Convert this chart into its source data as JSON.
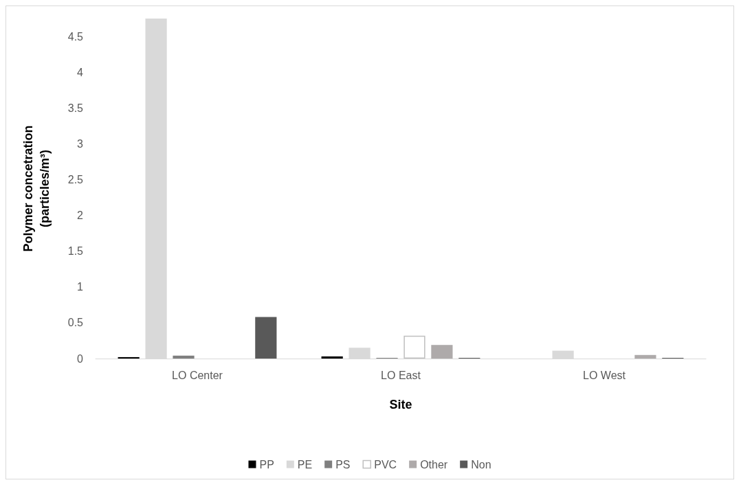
{
  "chart_data": {
    "type": "bar",
    "xlabel": "Site",
    "ylabel": "Polymer concetration\n(particles/m³)",
    "categories": [
      "LO Center",
      "LO East",
      "LO West"
    ],
    "series": [
      {
        "name": "PP",
        "color": "#000000",
        "values": [
          0.02,
          0.03,
          0
        ]
      },
      {
        "name": "PE",
        "color": "#d9d9d9",
        "values": [
          4.75,
          0.15,
          0.11
        ]
      },
      {
        "name": "PS",
        "color": "#7f7f7f",
        "values": [
          0.04,
          0.01,
          0
        ]
      },
      {
        "name": "PVC",
        "color": "#ffffff",
        "values": [
          0,
          0.32,
          0
        ]
      },
      {
        "name": "Other",
        "color": "#aeaaaa",
        "values": [
          0,
          0.19,
          0.05
        ]
      },
      {
        "name": "Non",
        "color": "#595959",
        "values": [
          0.58,
          0.01,
          0.01
        ]
      }
    ],
    "ylim": [
      0,
      4.75
    ],
    "yticks": [
      0,
      0.5,
      1,
      1.5,
      2,
      2.5,
      3,
      3.5,
      4,
      4.5
    ],
    "grid": false,
    "legend": "bottom"
  }
}
